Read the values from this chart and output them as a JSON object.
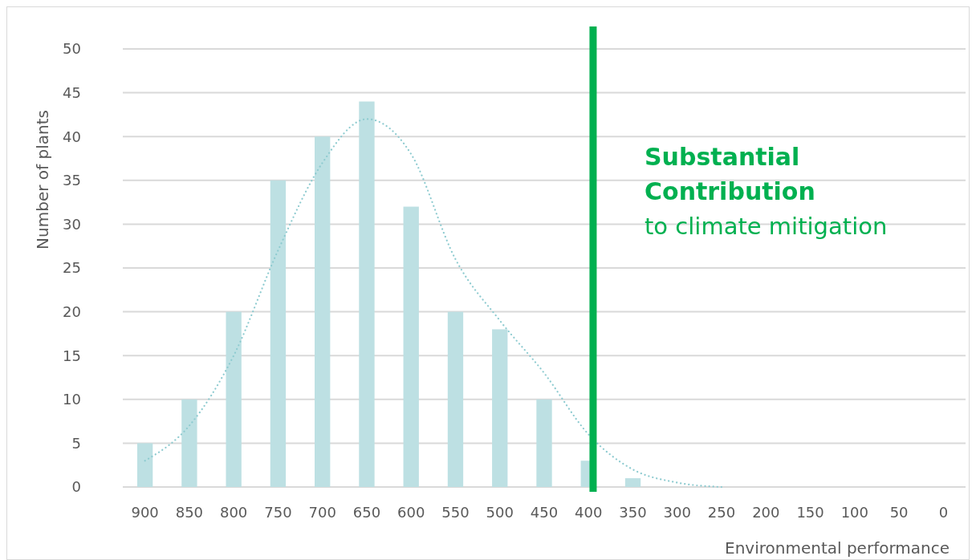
{
  "chart_data": {
    "type": "bar",
    "xlabel": "Environmental performance",
    "ylabel": "Number of plants",
    "categories": [
      "900",
      "850",
      "800",
      "750",
      "700",
      "650",
      "600",
      "550",
      "500",
      "450",
      "400",
      "350",
      "300",
      "250",
      "200",
      "150",
      "100",
      "50",
      "0"
    ],
    "series": [
      {
        "color": "#bde0e3",
        "values": [
          5,
          10,
          20,
          35,
          40,
          44,
          32,
          20,
          18,
          10,
          3,
          1,
          null,
          null,
          null,
          null,
          null,
          null,
          null
        ]
      },
      {
        "type": "line",
        "line_style": "dotted",
        "color": "#8ecbd0",
        "values": [
          3,
          7,
          15,
          27,
          37,
          42,
          38,
          26,
          19,
          13,
          6,
          2,
          0.5,
          0,
          null,
          null,
          null,
          null,
          null
        ]
      }
    ],
    "ylim": [
      0,
      50
    ],
    "yticks": [
      0,
      5,
      10,
      15,
      20,
      25,
      30,
      35,
      40,
      45,
      50
    ],
    "grid": "y",
    "ref_lines": [
      {
        "axis": "x",
        "value": "400",
        "color": "#00b050"
      }
    ],
    "annotations": [
      "Substantial Contribution",
      "to climate mitigation"
    ]
  }
}
